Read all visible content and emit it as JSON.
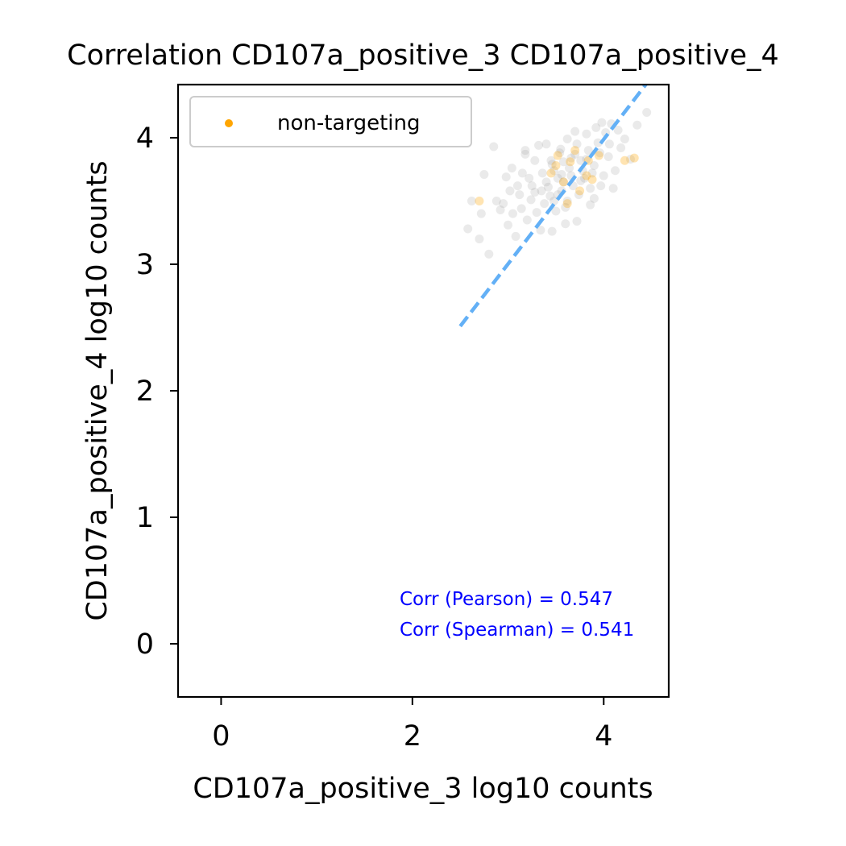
{
  "chart_data": {
    "type": "scatter",
    "title": "Correlation CD107a_positive_3 CD107a_positive_4",
    "xlabel": "CD107a_positive_3 log10 counts",
    "ylabel": "CD107a_positive_4 log10 counts",
    "xlim": [
      -0.45,
      4.68
    ],
    "ylim": [
      -0.42,
      4.42
    ],
    "xticks": [
      "0",
      "2",
      "4"
    ],
    "yticks": [
      "0",
      "1",
      "2",
      "3",
      "4"
    ],
    "legend": {
      "placement": "top-left",
      "label": "non-targeting"
    },
    "annotations": [
      "Corr (Pearson) = 0.547",
      "Corr (Spearman) = 0.541"
    ],
    "colors": {
      "other": "#9e9e9e",
      "non_targeting": "#ffa500",
      "fit": "#63b0f6",
      "annotation": "#0000ff"
    },
    "fit_line": {
      "x": [
        2.5,
        4.47
      ],
      "y": [
        2.51,
        4.45
      ]
    },
    "series": [
      {
        "role": "other",
        "points": [
          [
            2.75,
            3.71
          ],
          [
            2.85,
            3.93
          ],
          [
            2.98,
            3.69
          ],
          [
            3.04,
            3.76
          ],
          [
            3.18,
            3.87
          ],
          [
            3.32,
            3.94
          ],
          [
            3.45,
            3.82
          ],
          [
            3.55,
            3.91
          ],
          [
            3.62,
            3.99
          ],
          [
            3.72,
            3.95
          ],
          [
            3.82,
            4.03
          ],
          [
            3.92,
            4.08
          ],
          [
            4.02,
            4.04
          ],
          [
            4.08,
            4.11
          ],
          [
            4.15,
            4.06
          ],
          [
            4.22,
            3.99
          ],
          [
            4.28,
            3.83
          ],
          [
            4.45,
            4.2
          ],
          [
            4.35,
            4.1
          ],
          [
            2.62,
            3.5
          ],
          [
            2.72,
            3.4
          ],
          [
            2.88,
            3.5
          ],
          [
            2.95,
            3.48
          ],
          [
            3.02,
            3.58
          ],
          [
            3.1,
            3.62
          ],
          [
            3.22,
            3.68
          ],
          [
            3.28,
            3.57
          ],
          [
            3.36,
            3.72
          ],
          [
            3.42,
            3.61
          ],
          [
            3.48,
            3.74
          ],
          [
            3.52,
            3.68
          ],
          [
            3.58,
            3.81
          ],
          [
            3.64,
            3.76
          ],
          [
            3.7,
            3.87
          ],
          [
            3.76,
            3.82
          ],
          [
            3.84,
            3.9
          ],
          [
            3.9,
            3.78
          ],
          [
            3.96,
            3.88
          ],
          [
            4.05,
            3.85
          ],
          [
            4.12,
            3.74
          ],
          [
            3.3,
            3.41
          ],
          [
            3.38,
            3.48
          ],
          [
            3.44,
            3.54
          ],
          [
            3.5,
            3.42
          ],
          [
            3.56,
            3.58
          ],
          [
            3.62,
            3.5
          ],
          [
            3.68,
            3.62
          ],
          [
            3.74,
            3.55
          ],
          [
            3.8,
            3.68
          ],
          [
            3.86,
            3.6
          ],
          [
            3.14,
            3.44
          ],
          [
            3.2,
            3.35
          ],
          [
            3.34,
            3.27
          ],
          [
            3.46,
            3.26
          ],
          [
            3.6,
            3.45
          ],
          [
            3.72,
            3.34
          ],
          [
            3.86,
            3.47
          ],
          [
            2.58,
            3.28
          ],
          [
            2.7,
            3.2
          ],
          [
            2.8,
            3.08
          ],
          [
            3.0,
            3.31
          ],
          [
            3.08,
            3.22
          ],
          [
            3.24,
            3.51
          ],
          [
            3.4,
            3.65
          ],
          [
            3.54,
            3.88
          ],
          [
            3.66,
            3.7
          ],
          [
            3.78,
            3.74
          ],
          [
            3.94,
            3.96
          ],
          [
            4.0,
            3.7
          ],
          [
            4.18,
            3.92
          ],
          [
            3.28,
            3.82
          ],
          [
            3.6,
            3.32
          ],
          [
            3.97,
            3.62
          ],
          [
            3.4,
            3.95
          ],
          [
            3.7,
            4.05
          ],
          [
            3.05,
            3.4
          ],
          [
            3.15,
            3.72
          ],
          [
            3.52,
            3.55
          ],
          [
            3.9,
            3.52
          ],
          [
            4.1,
            3.6
          ],
          [
            3.35,
            3.58
          ],
          [
            3.46,
            3.79
          ],
          [
            3.58,
            3.65
          ],
          [
            3.82,
            3.83
          ],
          [
            3.25,
            3.62
          ],
          [
            2.92,
            3.43
          ],
          [
            3.12,
            3.55
          ],
          [
            3.66,
            3.84
          ],
          [
            3.76,
            3.66
          ],
          [
            3.88,
            3.72
          ],
          [
            4.06,
            3.95
          ],
          [
            3.48,
            3.5
          ],
          [
            3.18,
            3.9
          ],
          [
            3.98,
            4.12
          ],
          [
            3.56,
            3.71
          ]
        ]
      },
      {
        "role": "non-targeting",
        "points": [
          [
            2.7,
            3.5
          ],
          [
            3.45,
            3.72
          ],
          [
            3.52,
            3.86
          ],
          [
            3.58,
            3.65
          ],
          [
            3.65,
            3.81
          ],
          [
            3.75,
            3.58
          ],
          [
            3.82,
            3.7
          ],
          [
            3.88,
            3.67
          ],
          [
            3.95,
            3.86
          ],
          [
            4.22,
            3.82
          ],
          [
            4.32,
            3.84
          ],
          [
            3.62,
            3.48
          ],
          [
            3.5,
            3.78
          ],
          [
            3.7,
            3.9
          ],
          [
            3.84,
            3.82
          ]
        ]
      }
    ]
  }
}
